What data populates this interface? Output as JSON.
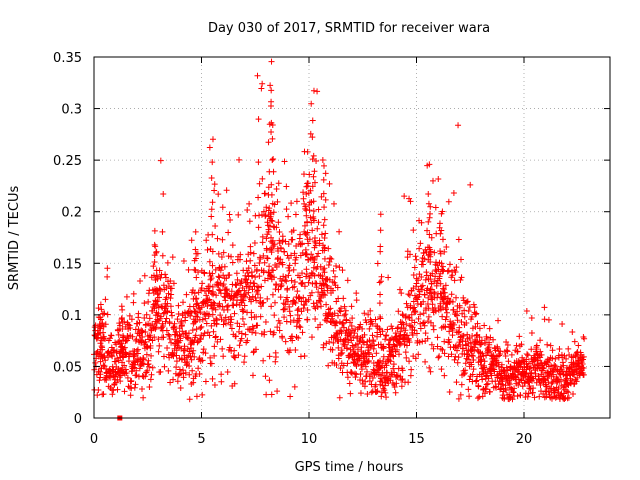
{
  "chart_data": {
    "type": "scatter",
    "title": "Day 030 of 2017, SRMTID for receiver wara",
    "xlabel": "GPS time / hours",
    "ylabel": "SRMTID / TECUs",
    "xlim": [
      0,
      24
    ],
    "ylim": [
      0,
      0.35
    ],
    "xticks": [
      0,
      5,
      10,
      15,
      20
    ],
    "xtick_labels": [
      "0",
      "5",
      "10",
      "15",
      "20"
    ],
    "yticks": [
      0,
      0.05,
      0.1,
      0.15,
      0.2,
      0.25,
      0.3,
      0.35
    ],
    "ytick_labels": [
      "0",
      "0.05",
      "0.1",
      "0.15",
      "0.2",
      "0.25",
      "0.3",
      "0.35"
    ],
    "grid": true,
    "marker": "+",
    "color": "#ff0000",
    "trend_hours": [
      0,
      0.5,
      1,
      1.5,
      2,
      2.5,
      3,
      3.5,
      4,
      4.5,
      5,
      5.5,
      6,
      6.5,
      7,
      7.5,
      8,
      8.5,
      9,
      9.5,
      10,
      10.5,
      11,
      11.5,
      12,
      12.5,
      13,
      13.5,
      14,
      14.5,
      15,
      15.5,
      16,
      16.5,
      17,
      17.5,
      18,
      18.5,
      19,
      19.5,
      20,
      20.5,
      21,
      21.5,
      22,
      22.5,
      22.8
    ],
    "trend_tecu": [
      0.065,
      0.06,
      0.05,
      0.055,
      0.06,
      0.075,
      0.11,
      0.095,
      0.07,
      0.08,
      0.1,
      0.11,
      0.12,
      0.11,
      0.115,
      0.12,
      0.14,
      0.13,
      0.13,
      0.12,
      0.15,
      0.14,
      0.1,
      0.08,
      0.07,
      0.06,
      0.055,
      0.05,
      0.06,
      0.08,
      0.11,
      0.13,
      0.12,
      0.1,
      0.09,
      0.075,
      0.06,
      0.05,
      0.045,
      0.04,
      0.045,
      0.05,
      0.04,
      0.035,
      0.035,
      0.05,
      0.055
    ],
    "spread_tecu": [
      0.02,
      0.02,
      0.018,
      0.02,
      0.02,
      0.025,
      0.03,
      0.025,
      0.02,
      0.025,
      0.03,
      0.035,
      0.035,
      0.03,
      0.03,
      0.035,
      0.05,
      0.045,
      0.04,
      0.04,
      0.05,
      0.04,
      0.03,
      0.025,
      0.02,
      0.02,
      0.02,
      0.02,
      0.02,
      0.025,
      0.03,
      0.035,
      0.035,
      0.03,
      0.03,
      0.025,
      0.02,
      0.015,
      0.015,
      0.012,
      0.012,
      0.015,
      0.012,
      0.012,
      0.012,
      0.012,
      0.012
    ],
    "peaks": [
      {
        "x": 8.2,
        "y": 0.34
      },
      {
        "x": 8.25,
        "y": 0.3
      },
      {
        "x": 10.2,
        "y": 0.3
      },
      {
        "x": 5.5,
        "y": 0.27
      },
      {
        "x": 9.9,
        "y": 0.23
      },
      {
        "x": 10.7,
        "y": 0.25
      },
      {
        "x": 15.6,
        "y": 0.215
      },
      {
        "x": 16.2,
        "y": 0.2
      },
      {
        "x": 13.3,
        "y": 0.19
      },
      {
        "x": 2.9,
        "y": 0.18
      },
      {
        "x": 4.7,
        "y": 0.18
      },
      {
        "x": 0.3,
        "y": 0.11
      },
      {
        "x": 1.3,
        "y": 0.105
      }
    ],
    "outliers": [
      {
        "x": 1.2,
        "y": 0.0
      }
    ]
  }
}
